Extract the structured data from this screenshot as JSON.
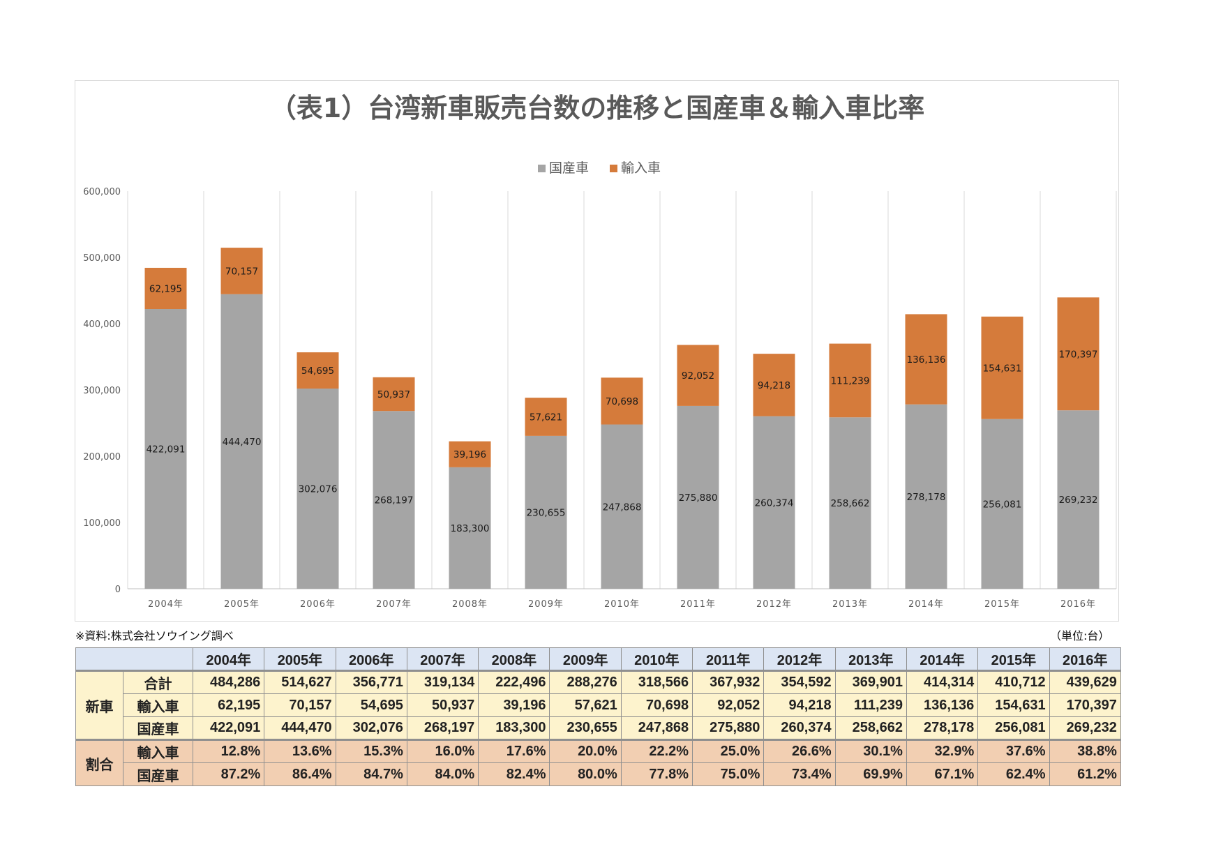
{
  "chart_data": {
    "type": "bar",
    "stacked": true,
    "title": "（表1）台湾新車販売台数の推移と国産車＆輸入車比率",
    "categories": [
      "2004年",
      "2005年",
      "2006年",
      "2007年",
      "2008年",
      "2009年",
      "2010年",
      "2011年",
      "2012年",
      "2013年",
      "2014年",
      "2015年",
      "2016年"
    ],
    "series": [
      {
        "name": "国産車",
        "color": "#a5a5a5",
        "values": [
          422091,
          444470,
          302076,
          268197,
          183300,
          230655,
          247868,
          275880,
          260374,
          258662,
          278178,
          256081,
          269232
        ],
        "labels": [
          "422,091",
          "444,470",
          "302,076",
          "268,197",
          "183,300",
          "230,655",
          "247,868",
          "275,880",
          "260,374",
          "258,662",
          "278,178",
          "256,081",
          "269,232"
        ]
      },
      {
        "name": "輸入車",
        "color": "#d57b3b",
        "values": [
          62195,
          70157,
          54695,
          50937,
          39196,
          57621,
          70698,
          92052,
          94218,
          111239,
          136136,
          154631,
          170397
        ],
        "labels": [
          "62,195",
          "70,157",
          "54,695",
          "50,937",
          "39,196",
          "57,621",
          "70,698",
          "92,052",
          "94,218",
          "111,239",
          "136,136",
          "154,631",
          "170,397"
        ]
      }
    ],
    "ylim": [
      0,
      600000
    ],
    "yticks": [
      0,
      100000,
      200000,
      300000,
      400000,
      500000,
      600000
    ],
    "ytick_labels": [
      "0",
      "100,000",
      "200,000",
      "300,000",
      "400,000",
      "500,000",
      "600,000"
    ],
    "legend_position": "top",
    "grid": "vertical"
  },
  "notes": {
    "source": "※資料:株式会社ソウイング調べ",
    "unit": "（単位:台）"
  },
  "table": {
    "columns": [
      "2004年",
      "2005年",
      "2006年",
      "2007年",
      "2008年",
      "2009年",
      "2010年",
      "2011年",
      "2012年",
      "2013年",
      "2014年",
      "2015年",
      "2016年"
    ],
    "groups": [
      {
        "label": "新車",
        "cls": "sales",
        "rows": [
          {
            "label": "合計",
            "values": [
              "484,286",
              "514,627",
              "356,771",
              "319,134",
              "222,496",
              "288,276",
              "318,566",
              "367,932",
              "354,592",
              "369,901",
              "414,314",
              "410,712",
              "439,629"
            ]
          },
          {
            "label": "輸入車",
            "values": [
              "62,195",
              "70,157",
              "54,695",
              "50,937",
              "39,196",
              "57,621",
              "70,698",
              "92,052",
              "94,218",
              "111,239",
              "136,136",
              "154,631",
              "170,397"
            ]
          },
          {
            "label": "国産車",
            "values": [
              "422,091",
              "444,470",
              "302,076",
              "268,197",
              "183,300",
              "230,655",
              "247,868",
              "275,880",
              "260,374",
              "258,662",
              "278,178",
              "256,081",
              "269,232"
            ]
          }
        ]
      },
      {
        "label": "割合",
        "cls": "ratio",
        "rows": [
          {
            "label": "輸入車",
            "values": [
              "12.8%",
              "13.6%",
              "15.3%",
              "16.0%",
              "17.6%",
              "20.0%",
              "22.2%",
              "25.0%",
              "26.6%",
              "30.1%",
              "32.9%",
              "37.6%",
              "38.8%"
            ]
          },
          {
            "label": "国産車",
            "values": [
              "87.2%",
              "86.4%",
              "84.7%",
              "84.0%",
              "82.4%",
              "80.0%",
              "77.8%",
              "75.0%",
              "73.4%",
              "69.9%",
              "67.1%",
              "62.4%",
              "61.2%"
            ]
          }
        ]
      }
    ]
  }
}
